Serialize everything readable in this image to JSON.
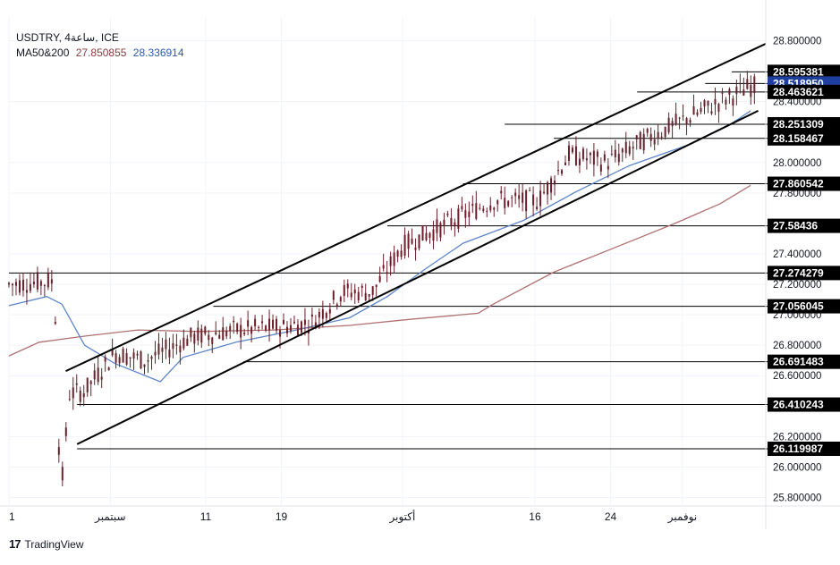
{
  "header": {
    "symbol_line": "USDTRY, 4ساعة, ICE",
    "ma_label": "MA50&200",
    "ma_fast_value": "27.850855",
    "ma_slow_value": "28.336914"
  },
  "brand": {
    "name": "TradingView",
    "logo_text": "17"
  },
  "colors": {
    "candle": "#6b1f2a",
    "ma_fast": "#b07070",
    "ma_slow": "#5c85c8",
    "channel": "#000000",
    "grid": "#f0f3fa",
    "axis_text": "#131722"
  },
  "chart_data": {
    "type": "candlestick",
    "symbol": "USDTRY",
    "timeframe": "4ساعة",
    "exchange": "ICE",
    "ylim": [
      25.75,
      28.95
    ],
    "y_ticks": [
      "28.800000",
      "28.400000",
      "28.000000",
      "27.800000",
      "27.400000",
      "27.200000",
      "27.000000",
      "26.800000",
      "26.600000",
      "26.200000",
      "26.000000",
      "25.800000"
    ],
    "y_tick_values": [
      28.8,
      28.4,
      28.0,
      27.8,
      27.4,
      27.2,
      27.0,
      26.8,
      26.6,
      26.2,
      26.0,
      25.8
    ],
    "x_labels": [
      "1",
      "سبتمبر",
      "11",
      "19",
      "أكتوبر",
      "16",
      "24",
      "نوفمبر"
    ],
    "x_label_positions": [
      0.0,
      0.134,
      0.26,
      0.36,
      0.52,
      0.695,
      0.795,
      0.89
    ],
    "price_levels": [
      {
        "value": 28.595381,
        "label": "28.595381",
        "start": 0.955
      },
      {
        "value": 28.51895,
        "label": "28.518950",
        "start": 0.92,
        "highlight": true
      },
      {
        "value": 28.463621,
        "label": "28.463621",
        "start": 0.83
      },
      {
        "value": 28.251309,
        "label": "28.251309",
        "start": 0.655
      },
      {
        "value": 28.158467,
        "label": "28.158467",
        "start": 0.72
      },
      {
        "value": 27.860542,
        "label": "27.860542",
        "start": 0.6
      },
      {
        "value": 27.58436,
        "label": "27.58436",
        "start": 0.5
      },
      {
        "value": 27.274279,
        "label": "27.274279",
        "start": 0.0
      },
      {
        "value": 27.056045,
        "label": "27.056045",
        "start": 0.27
      },
      {
        "value": 26.691483,
        "label": "26.691483",
        "start": 0.31
      },
      {
        "value": 26.410243,
        "label": "26.410243",
        "start": 0.09
      },
      {
        "value": 26.119987,
        "label": "26.119987",
        "start": 0.09
      }
    ],
    "channel_upper": [
      {
        "t": 0.075,
        "v": 26.63
      },
      {
        "t": 1.0,
        "v": 28.78
      }
    ],
    "channel_lower": [
      {
        "t": 0.09,
        "v": 26.15
      },
      {
        "t": 0.99,
        "v": 28.34
      }
    ],
    "ma_fast_series": [
      {
        "t": 0.0,
        "v": 26.73
      },
      {
        "t": 0.04,
        "v": 26.82
      },
      {
        "t": 0.1,
        "v": 26.86
      },
      {
        "t": 0.17,
        "v": 26.9
      },
      {
        "t": 0.25,
        "v": 26.89
      },
      {
        "t": 0.35,
        "v": 26.9
      },
      {
        "t": 0.45,
        "v": 26.93
      },
      {
        "t": 0.53,
        "v": 26.97
      },
      {
        "t": 0.62,
        "v": 27.01
      },
      {
        "t": 0.64,
        "v": 27.07
      },
      {
        "t": 0.72,
        "v": 27.28
      },
      {
        "t": 0.8,
        "v": 27.44
      },
      {
        "t": 0.88,
        "v": 27.6
      },
      {
        "t": 0.94,
        "v": 27.73
      },
      {
        "t": 0.98,
        "v": 27.85
      }
    ],
    "ma_slow_series": [
      {
        "t": 0.0,
        "v": 27.06
      },
      {
        "t": 0.05,
        "v": 27.12
      },
      {
        "t": 0.07,
        "v": 27.07
      },
      {
        "t": 0.1,
        "v": 26.8
      },
      {
        "t": 0.14,
        "v": 26.68
      },
      {
        "t": 0.2,
        "v": 26.56
      },
      {
        "t": 0.23,
        "v": 26.72
      },
      {
        "t": 0.3,
        "v": 26.82
      },
      {
        "t": 0.38,
        "v": 26.9
      },
      {
        "t": 0.45,
        "v": 26.98
      },
      {
        "t": 0.5,
        "v": 27.12
      },
      {
        "t": 0.55,
        "v": 27.3
      },
      {
        "t": 0.6,
        "v": 27.47
      },
      {
        "t": 0.68,
        "v": 27.62
      },
      {
        "t": 0.75,
        "v": 27.81
      },
      {
        "t": 0.82,
        "v": 27.98
      },
      {
        "t": 0.9,
        "v": 28.12
      },
      {
        "t": 0.95,
        "v": 28.24
      },
      {
        "t": 0.98,
        "v": 28.34
      }
    ],
    "price_path": [
      {
        "t": 0.0,
        "v": 27.2
      },
      {
        "t": 0.06,
        "v": 27.22
      },
      {
        "t": 0.068,
        "v": 25.78
      },
      {
        "t": 0.08,
        "v": 26.48
      },
      {
        "t": 0.1,
        "v": 26.5
      },
      {
        "t": 0.14,
        "v": 26.75
      },
      {
        "t": 0.18,
        "v": 26.7
      },
      {
        "t": 0.24,
        "v": 26.85
      },
      {
        "t": 0.3,
        "v": 26.9
      },
      {
        "t": 0.36,
        "v": 26.92
      },
      {
        "t": 0.4,
        "v": 26.95
      },
      {
        "t": 0.44,
        "v": 27.15
      },
      {
        "t": 0.48,
        "v": 27.15
      },
      {
        "t": 0.52,
        "v": 27.45
      },
      {
        "t": 0.58,
        "v": 27.6
      },
      {
        "t": 0.64,
        "v": 27.75
      },
      {
        "t": 0.7,
        "v": 27.75
      },
      {
        "t": 0.74,
        "v": 28.05
      },
      {
        "t": 0.79,
        "v": 28.0
      },
      {
        "t": 0.84,
        "v": 28.15
      },
      {
        "t": 0.88,
        "v": 28.25
      },
      {
        "t": 0.92,
        "v": 28.35
      },
      {
        "t": 0.96,
        "v": 28.45
      },
      {
        "t": 0.98,
        "v": 28.5
      }
    ]
  }
}
